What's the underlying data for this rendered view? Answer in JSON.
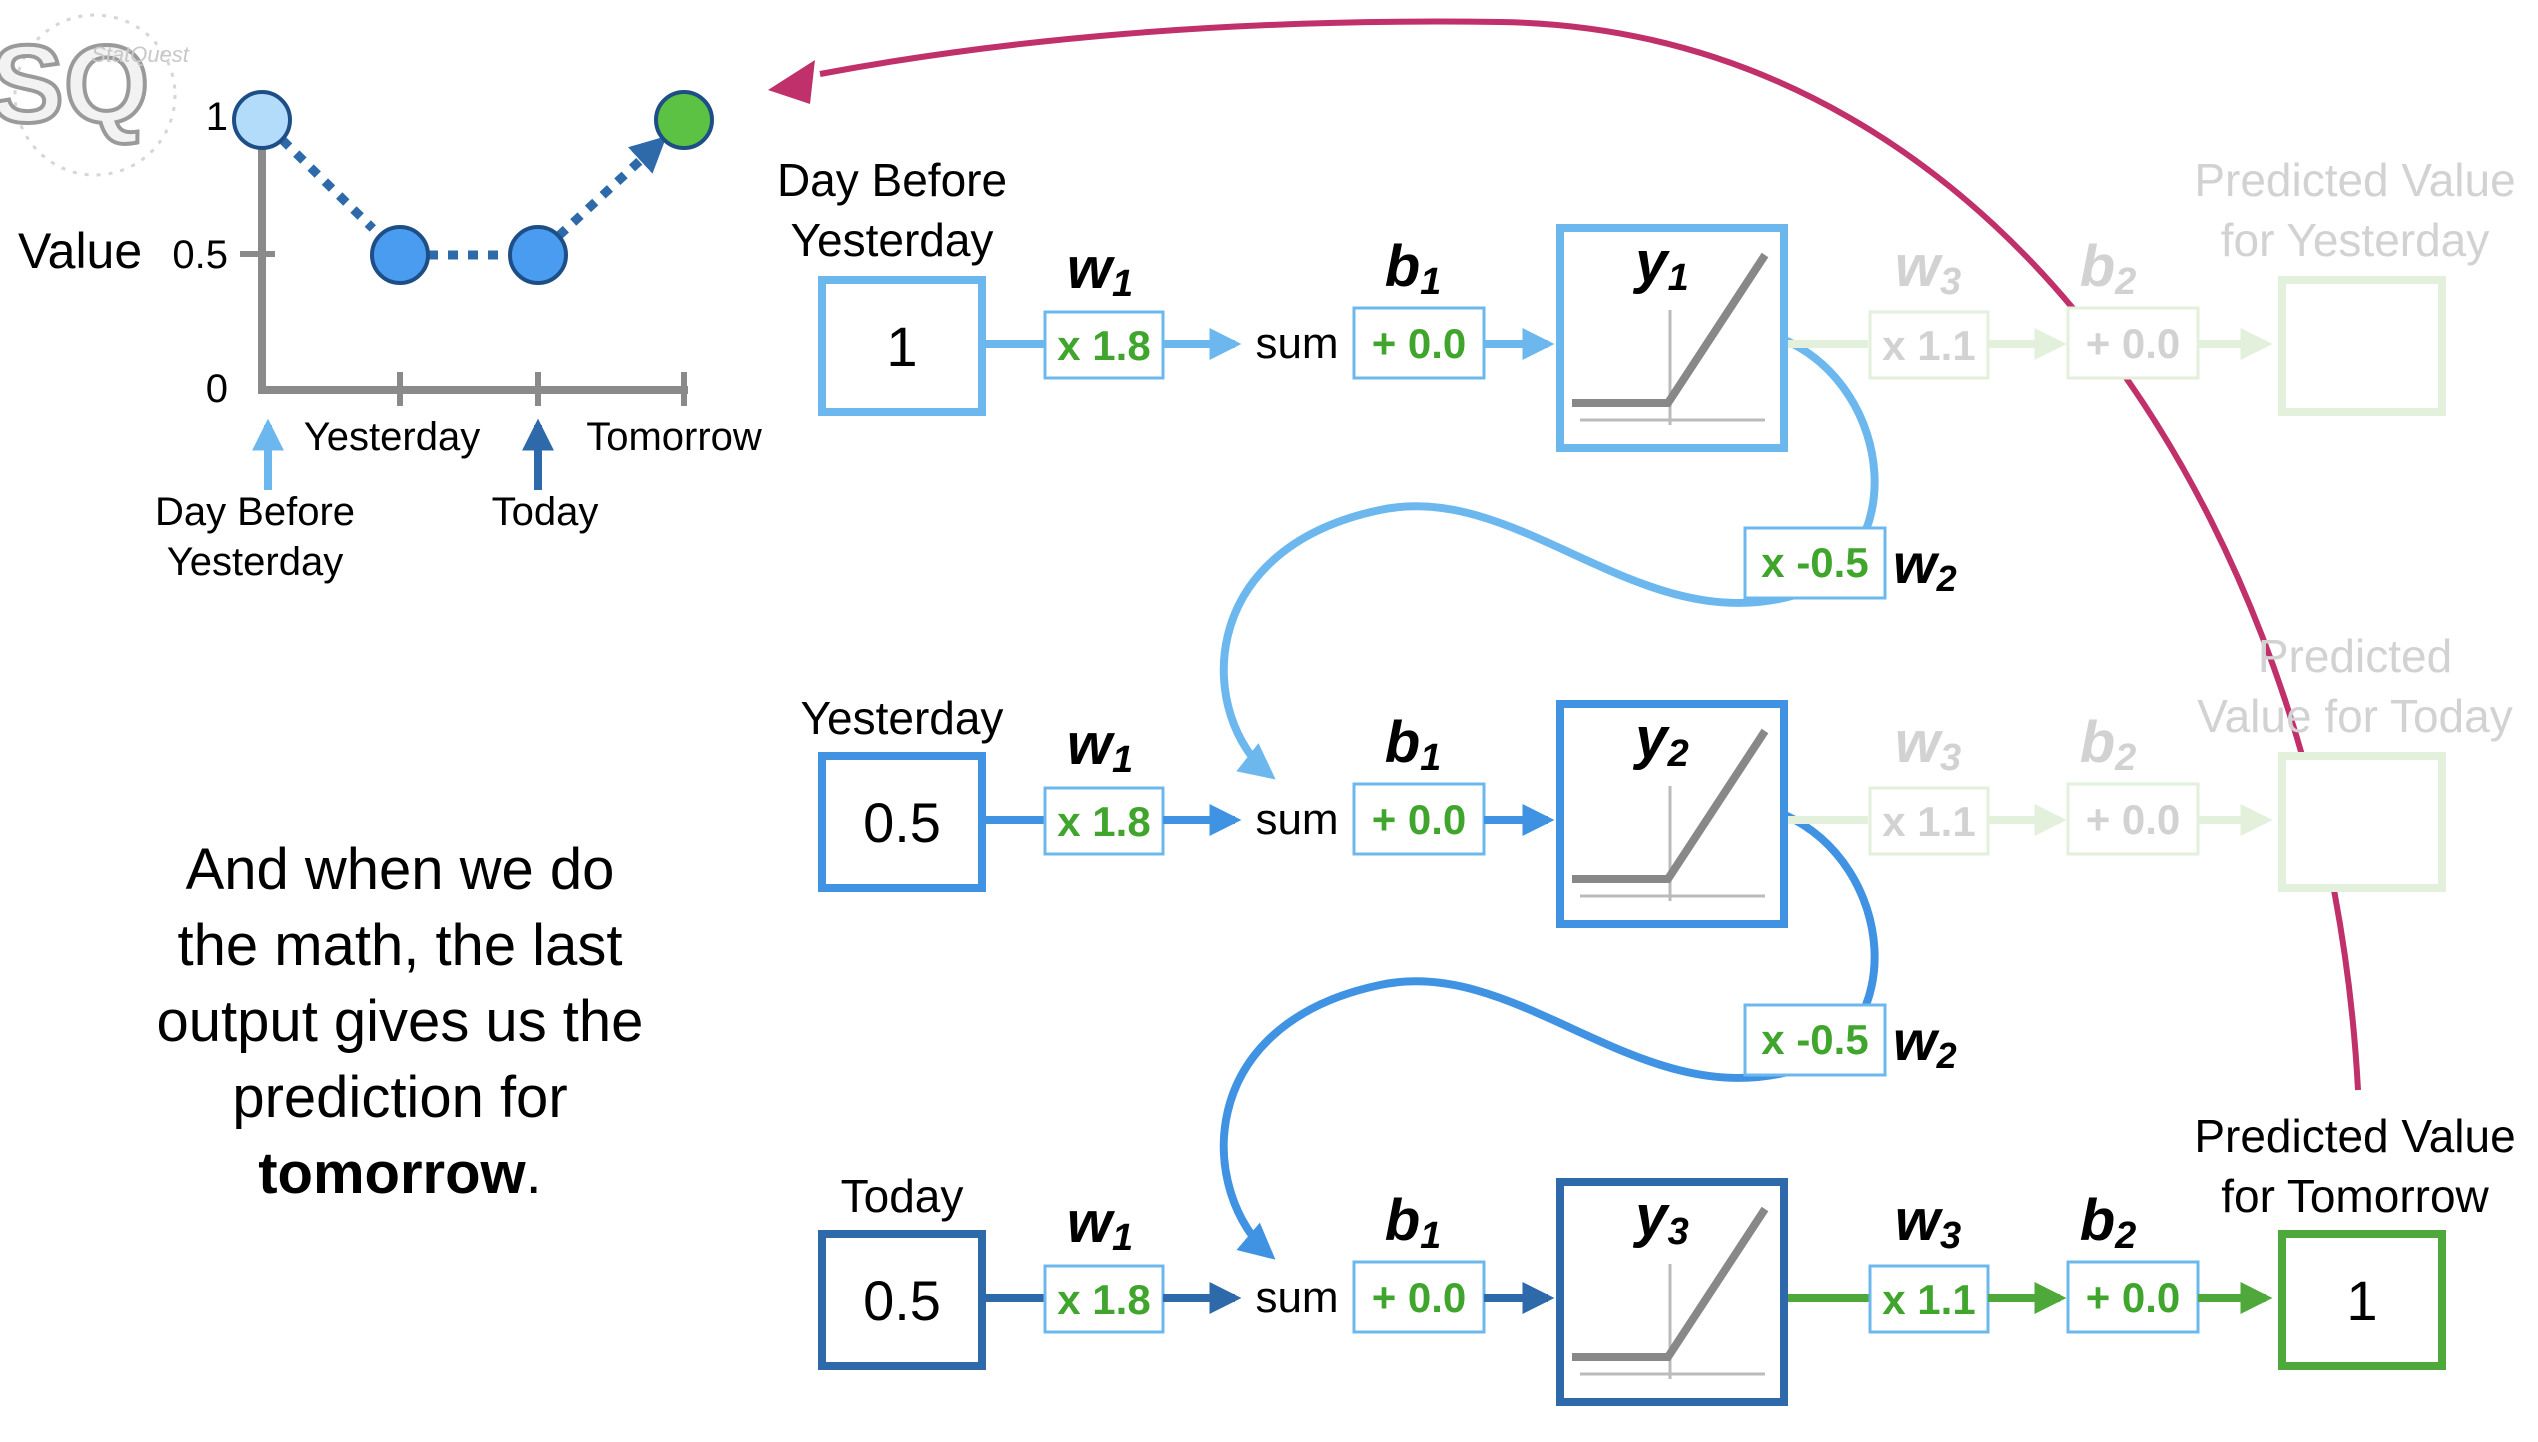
{
  "logo": {
    "text": "SQ",
    "small_text": "StatQuest"
  },
  "mini_chart": {
    "y_axis_label": "Value",
    "y_ticks": [
      "1",
      "0.5",
      "0"
    ],
    "x_ticks": [
      "Yesterday",
      "Tomorrow"
    ],
    "arrow_labels": [
      "Day Before",
      "Yesterday",
      "Today"
    ]
  },
  "chart_data": {
    "type": "line",
    "categories": [
      "Day Before Yesterday",
      "Yesterday",
      "Today",
      "Tomorrow"
    ],
    "series": [
      {
        "values": [
          1,
          0.5,
          0.5,
          1
        ]
      }
    ],
    "ylabel": "Value",
    "ylim": [
      0,
      1
    ]
  },
  "narration": {
    "line1": "And when we do",
    "line2": "the math, the last",
    "line3": "output gives us the",
    "line4": "prediction for",
    "bold_word": "tomorrow",
    "tail": "."
  },
  "rows": [
    {
      "input_label_1": "Day Before",
      "input_label_2": "Yesterday",
      "input_value": "1",
      "w1_symbol": "w",
      "w1_sub": "1",
      "w1_value": "x 1.8",
      "sum_label": "sum",
      "b1_symbol": "b",
      "b1_sub": "1",
      "b1_value": "+ 0.0",
      "y_symbol": "y",
      "y_sub": "1",
      "w3_symbol": "w",
      "w3_sub": "3",
      "w3_value": "x 1.1",
      "b2_symbol": "b",
      "b2_sub": "2",
      "b2_value": "+ 0.0",
      "out_label_1": "Predicted Value",
      "out_label_2": "for Yesterday",
      "out_value": ""
    },
    {
      "input_label_1": "Yesterday",
      "input_label_2": "",
      "input_value": "0.5",
      "w1_symbol": "w",
      "w1_sub": "1",
      "w1_value": "x 1.8",
      "sum_label": "sum",
      "b1_symbol": "b",
      "b1_sub": "1",
      "b1_value": "+ 0.0",
      "y_symbol": "y",
      "y_sub": "2",
      "w3_symbol": "w",
      "w3_sub": "3",
      "w3_value": "x 1.1",
      "b2_symbol": "b",
      "b2_sub": "2",
      "b2_value": "+ 0.0",
      "out_label_1": "Predicted",
      "out_label_2": "Value for Today",
      "out_value": ""
    },
    {
      "input_label_1": "Today",
      "input_label_2": "",
      "input_value": "0.5",
      "w1_symbol": "w",
      "w1_sub": "1",
      "w1_value": "x 1.8",
      "sum_label": "sum",
      "b1_symbol": "b",
      "b1_sub": "1",
      "b1_value": "+ 0.0",
      "y_symbol": "y",
      "y_sub": "3",
      "w3_symbol": "w",
      "w3_sub": "3",
      "w3_value": "x 1.1",
      "b2_symbol": "b",
      "b2_sub": "2",
      "b2_value": "+ 0.0",
      "out_label_1": "Predicted Value",
      "out_label_2": "for Tomorrow",
      "out_value": "1"
    }
  ],
  "feedback": [
    {
      "w2_symbol": "w",
      "w2_sub": "2",
      "w2_value": "x -0.5"
    },
    {
      "w2_symbol": "w",
      "w2_sub": "2",
      "w2_value": "x -0.5"
    }
  ],
  "colors": {
    "row1": "#6cb8ee",
    "row2": "#3f93e2",
    "row3": "#2e6aaa",
    "green": "#4ea83a",
    "green_text": "#3fa52c",
    "faded_green": "#e2f0dc",
    "faded_text": "#d2d2d2",
    "magenta": "#c0306a",
    "dot_light": "#b3dbfa",
    "dot_mid": "#4a9cf0",
    "dot_green": "#5cc244",
    "axis": "#8a8a8a"
  }
}
